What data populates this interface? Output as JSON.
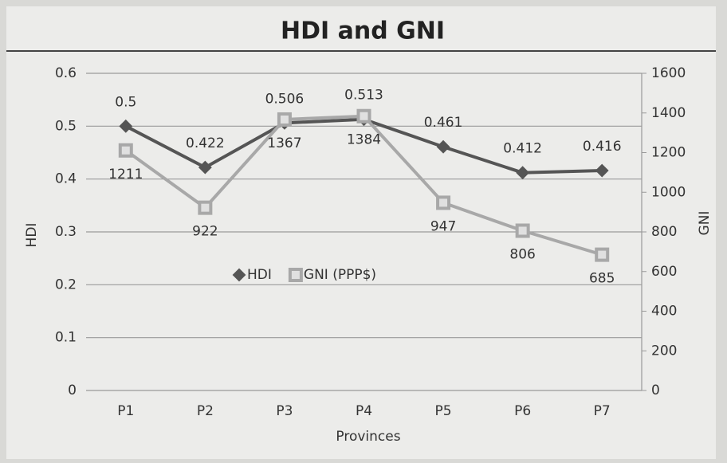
{
  "chart_data": {
    "type": "line",
    "title": "HDI and GNI",
    "x_label": "Provinces",
    "y_label": "HDI",
    "y2_label": "GNI",
    "categories": [
      "P1",
      "P2",
      "P3",
      "P4",
      "P5",
      "P6",
      "P7"
    ],
    "series": [
      {
        "name": "HDI",
        "color": "#555555",
        "marker": "diamond",
        "values": [
          0.5,
          0.422,
          0.506,
          0.513,
          0.461,
          0.412,
          0.416
        ]
      },
      {
        "name": "GNI (PPP$)",
        "color": "#a8a8a8",
        "marker": "square",
        "axis": "y2",
        "values": [
          1211,
          922,
          1367,
          1384,
          947,
          806,
          685
        ]
      }
    ],
    "ylim": [
      0,
      0.6
    ],
    "yticks": [
      0,
      0.1,
      0.2,
      0.3,
      0.4,
      0.5,
      0.6
    ],
    "y2lim": [
      0,
      1600
    ],
    "y2ticks": [
      0,
      200,
      400,
      600,
      800,
      1000,
      1200,
      1400,
      1600
    ],
    "grid": true,
    "legend": "center"
  }
}
